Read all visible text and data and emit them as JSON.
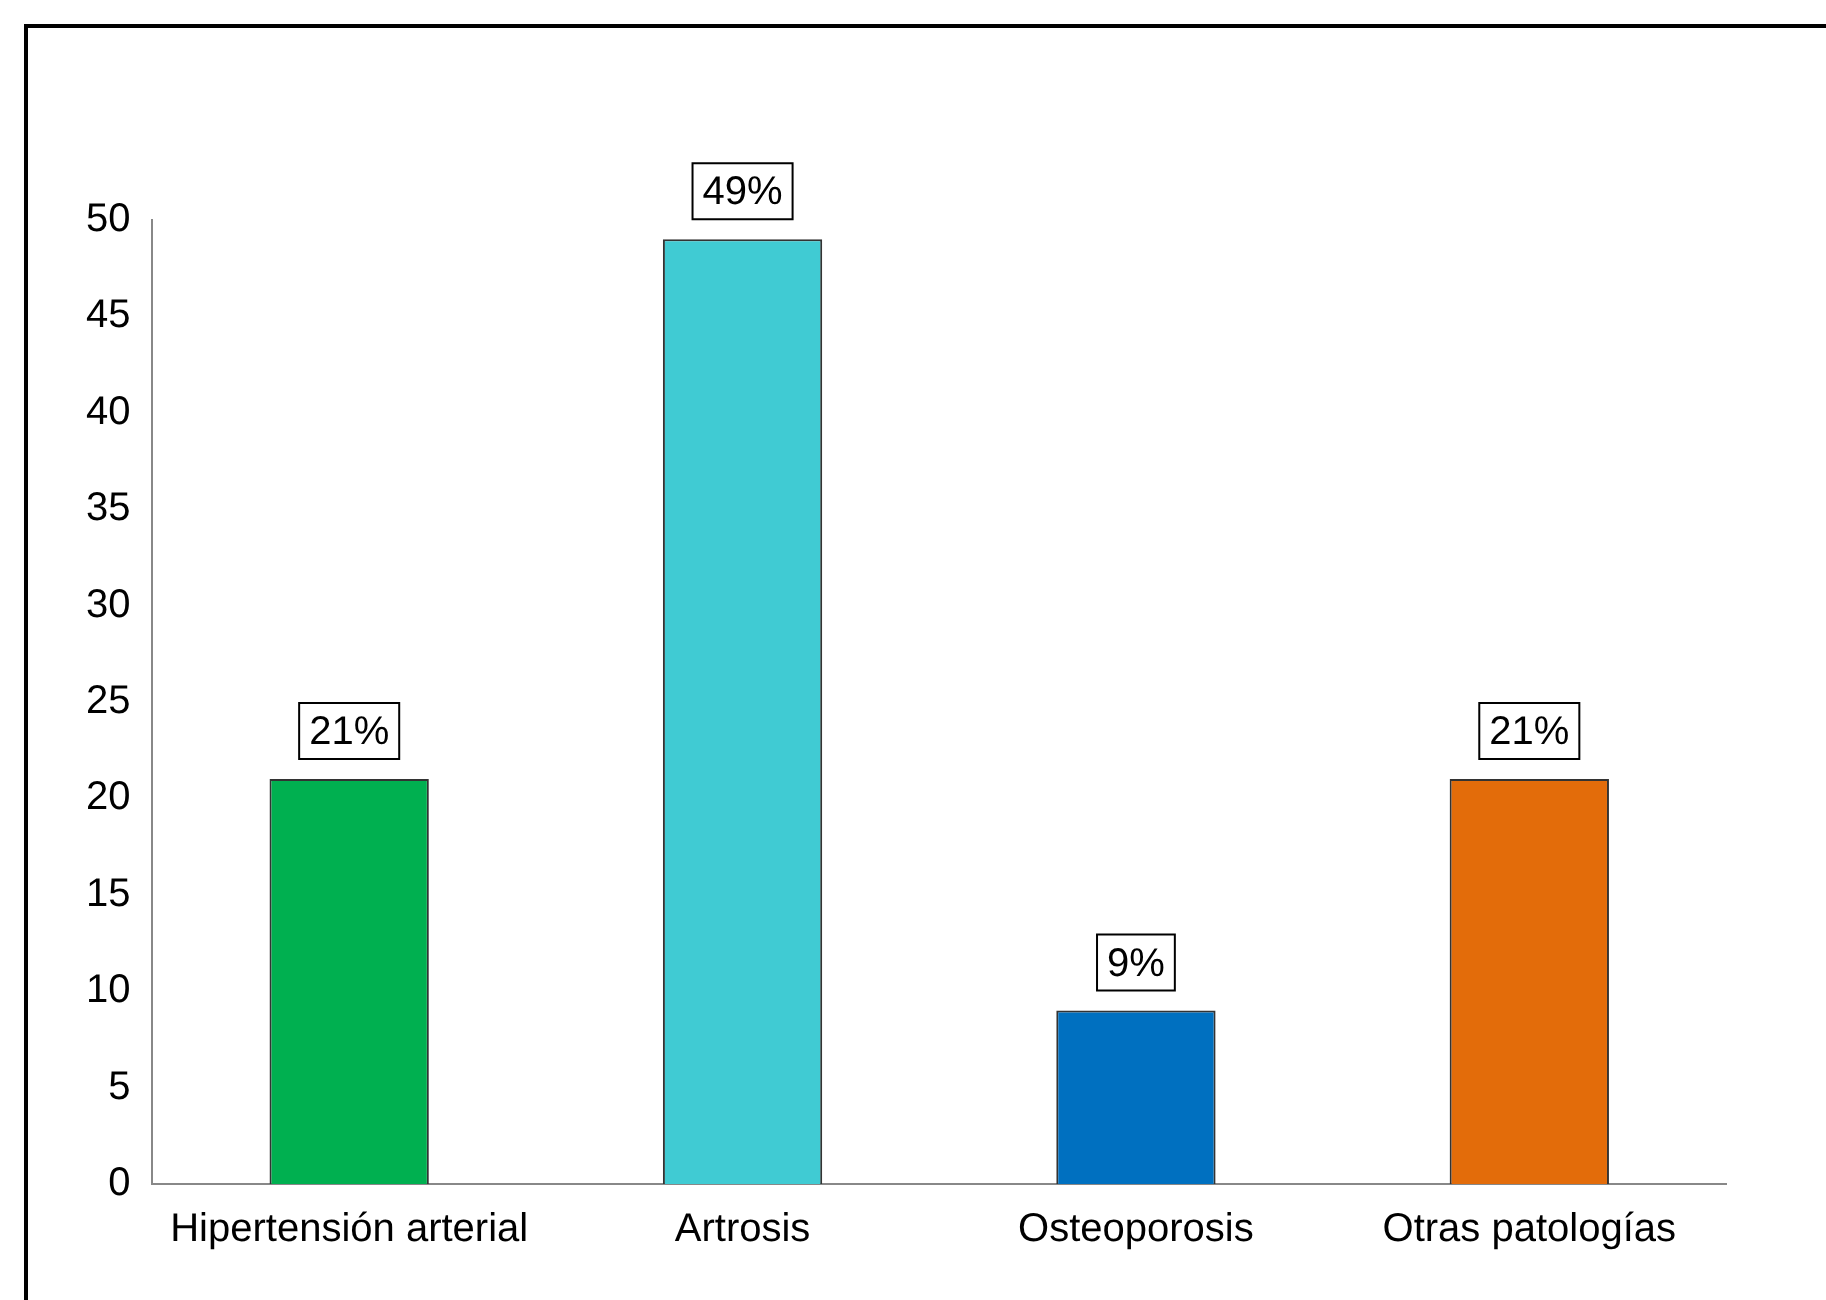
{
  "chart_data": {
    "type": "bar",
    "categories": [
      "Hipertensión arterial",
      "Artrosis",
      "Osteoporosis",
      "Otras patologías"
    ],
    "values": [
      21,
      49,
      9,
      21
    ],
    "colors": [
      "#00b050",
      "#40cbd3",
      "#0070c0",
      "#e36c0a"
    ],
    "value_labels": [
      "21%",
      "49%",
      "9%",
      "21%"
    ],
    "ylim": [
      0,
      50
    ],
    "yticks": [
      0,
      5,
      10,
      15,
      20,
      25,
      30,
      35,
      40,
      45,
      50
    ],
    "grid": false,
    "legend": false
  }
}
